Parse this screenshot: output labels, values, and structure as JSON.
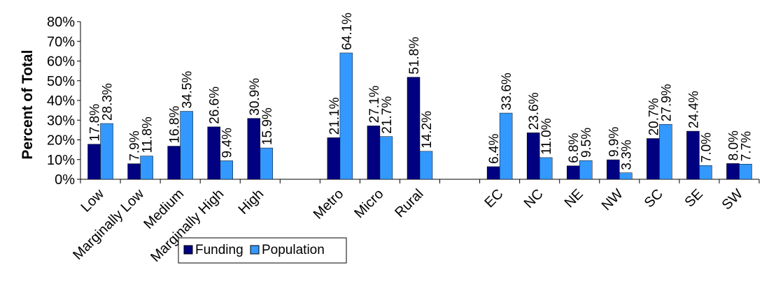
{
  "chart_data": {
    "type": "bar",
    "ylabel": "Percent of Total",
    "ylim": [
      0,
      80
    ],
    "yticks": [
      "0%",
      "10%",
      "20%",
      "30%",
      "40%",
      "50%",
      "60%",
      "70%",
      "80%"
    ],
    "grid": false,
    "legend_position": "bottom",
    "categories": [
      "Low",
      "Marginally Low",
      "Medium",
      "Marginally High",
      "High",
      "",
      "Metro",
      "Micro",
      "Rural",
      "",
      "EC",
      "NC",
      "NE",
      "NW",
      "SC",
      "SE",
      "SW"
    ],
    "series": [
      {
        "name": "Funding",
        "color": "#000080",
        "values": [
          17.8,
          7.9,
          16.8,
          26.6,
          30.9,
          null,
          21.1,
          27.1,
          51.8,
          null,
          6.4,
          23.6,
          6.8,
          9.9,
          20.7,
          24.4,
          8.0
        ],
        "labels": [
          "17.8%",
          "7.9%",
          "16.8%",
          "26.6%",
          "30.9%",
          "",
          "21.1%",
          "27.1%",
          "51.8%",
          "",
          "6.4%",
          "23.6%",
          "6.8%",
          "9.9%",
          "20.7%",
          "24.4%",
          "8.0%"
        ]
      },
      {
        "name": "Population",
        "color": "#3399FF",
        "values": [
          28.3,
          11.8,
          34.5,
          9.4,
          15.9,
          null,
          64.1,
          21.7,
          14.2,
          null,
          33.6,
          11.0,
          9.5,
          3.3,
          27.9,
          7.0,
          7.7
        ],
        "labels": [
          "28.3%",
          "11.8%",
          "34.5%",
          "9.4%",
          "15.9%",
          "",
          "64.1%",
          "21.7%",
          "14.2%",
          "",
          "33.6%",
          "11.0%",
          "9.5%",
          "3.3%",
          "27.9%",
          "7.0%",
          "7.7%"
        ]
      }
    ]
  }
}
